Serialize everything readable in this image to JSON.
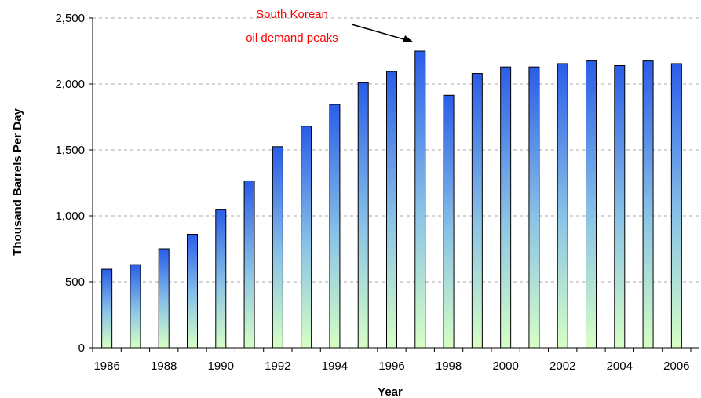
{
  "chart_data": {
    "type": "bar",
    "title": "",
    "xlabel": "Year",
    "ylabel": "Thousand Barrels Per Day",
    "x": [
      1986,
      1987,
      1988,
      1989,
      1990,
      1991,
      1992,
      1993,
      1994,
      1995,
      1996,
      1997,
      1998,
      1999,
      2000,
      2001,
      2002,
      2003,
      2004,
      2005,
      2006
    ],
    "values": [
      595,
      630,
      750,
      860,
      1050,
      1265,
      1525,
      1680,
      1845,
      2010,
      2095,
      2250,
      1915,
      2080,
      2130,
      2130,
      2155,
      2175,
      2140,
      2175,
      2155
    ],
    "x_tick_labels": [
      "1986",
      "1988",
      "1990",
      "1992",
      "1994",
      "1996",
      "1998",
      "2000",
      "2002",
      "2004",
      "2006"
    ],
    "y_tick_labels": [
      "0",
      "500",
      "1,000",
      "1,500",
      "2,000",
      "2,500"
    ],
    "y_ticks": [
      0,
      500,
      1000,
      1500,
      2000,
      2500
    ],
    "ylim": [
      0,
      2500
    ],
    "grid": "horizontal dashed",
    "legend": "none",
    "bar_gradient": {
      "top": "#2a5de8",
      "middle": "#8cc4e6",
      "bottom": "#d6ffc4"
    },
    "annotation": {
      "lines": [
        "South Korean",
        "oil demand peaks"
      ],
      "target_x": 1997,
      "color": "#ff0000"
    }
  }
}
